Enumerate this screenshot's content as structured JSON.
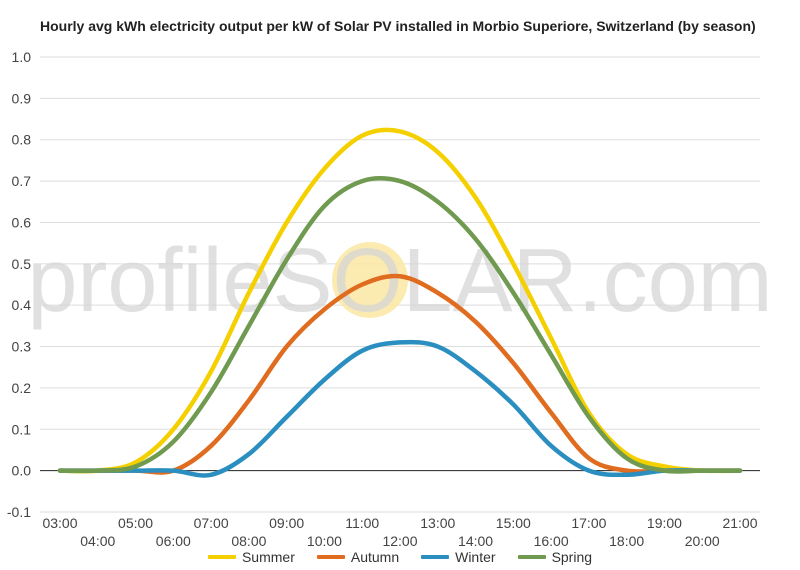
{
  "chart_data": {
    "type": "line",
    "title": "Hourly avg kWh electricity output per kW of Solar PV installed in Morbio Superiore, Switzerland (by season)",
    "watermark": "profileSOLAR.com",
    "xlabel": "",
    "ylabel": "",
    "ylim": [
      -0.1,
      1.0
    ],
    "yticks": [
      "-0.1",
      "0.0",
      "0.1",
      "0.2",
      "0.3",
      "0.4",
      "0.5",
      "0.6",
      "0.7",
      "0.8",
      "0.9",
      "1.0"
    ],
    "x_labels": [
      "03:00",
      "04:00",
      "05:00",
      "06:00",
      "07:00",
      "08:00",
      "09:00",
      "10:00",
      "11:00",
      "12:00",
      "13:00",
      "14:00",
      "15:00",
      "16:00",
      "17:00",
      "18:00",
      "19:00",
      "20:00",
      "21:00"
    ],
    "grid": true,
    "legend_position": "bottom",
    "series": [
      {
        "name": "Summer",
        "color": "#f5d000",
        "values": [
          0.0,
          0.0,
          0.02,
          0.1,
          0.24,
          0.43,
          0.6,
          0.73,
          0.81,
          0.82,
          0.77,
          0.66,
          0.5,
          0.32,
          0.14,
          0.04,
          0.01,
          0.0,
          0.0
        ]
      },
      {
        "name": "Autumn",
        "color": "#e06c1f",
        "values": [
          0.0,
          0.0,
          0.0,
          0.0,
          0.06,
          0.17,
          0.3,
          0.39,
          0.45,
          0.47,
          0.43,
          0.36,
          0.26,
          0.14,
          0.03,
          0.0,
          0.0,
          0.0,
          0.0
        ]
      },
      {
        "name": "Winter",
        "color": "#2a8fc0",
        "values": [
          0.0,
          0.0,
          0.0,
          0.0,
          -0.01,
          0.04,
          0.13,
          0.22,
          0.29,
          0.31,
          0.3,
          0.24,
          0.16,
          0.06,
          0.0,
          -0.01,
          0.0,
          0.0,
          0.0
        ]
      },
      {
        "name": "Spring",
        "color": "#6f9a4f",
        "values": [
          0.0,
          0.0,
          0.01,
          0.07,
          0.19,
          0.35,
          0.51,
          0.64,
          0.7,
          0.7,
          0.65,
          0.56,
          0.43,
          0.28,
          0.13,
          0.03,
          0.0,
          0.0,
          0.0
        ]
      }
    ]
  },
  "colors": {
    "grid": "#dddddd",
    "zero_line": "#222222",
    "axis_text": "#444444",
    "watermark_text": "#d6d6d6",
    "watermark_sun": "#fbe7a3"
  }
}
